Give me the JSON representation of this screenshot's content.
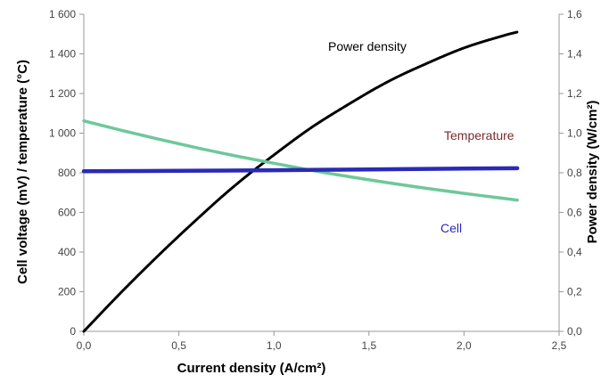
{
  "chart_data": {
    "type": "line",
    "xlabel": "Current density (A/cm²)",
    "ylabel_left": "Cell voltage (mV) / temperature  (°C)",
    "ylabel_right": "Power density (W/cm²)",
    "xlim": [
      0,
      2.5
    ],
    "ylim_left": [
      0,
      1600
    ],
    "ylim_right": [
      0,
      1.6
    ],
    "grid": false,
    "x_ticks": [
      0,
      0.5,
      1.0,
      1.5,
      2.0,
      2.5
    ],
    "x_tick_labels": [
      "0,0",
      "0,5",
      "1,0",
      "1,5",
      "2,0",
      "2,5"
    ],
    "y_left_ticks": [
      0,
      200,
      400,
      600,
      800,
      1000,
      1200,
      1400,
      1600
    ],
    "y_left_tick_labels": [
      "0",
      "200",
      "400",
      "600",
      "800",
      "1 000",
      "1 200",
      "1 400",
      "1 600"
    ],
    "y_right_ticks": [
      0,
      0.2,
      0.4,
      0.6,
      0.8,
      1.0,
      1.2,
      1.4,
      1.6
    ],
    "y_right_tick_labels": [
      "0,0",
      "0,2",
      "0,4",
      "0,6",
      "0,8",
      "1,0",
      "1,2",
      "1,4",
      "1,6"
    ],
    "series": [
      {
        "name": "Power density",
        "axis": "right",
        "color": "#000000",
        "x": [
          0,
          0.2,
          0.4,
          0.6,
          0.8,
          1.0,
          1.2,
          1.4,
          1.6,
          1.8,
          2.0,
          2.2,
          2.28
        ],
        "values": [
          0.0,
          0.2,
          0.39,
          0.57,
          0.74,
          0.89,
          1.03,
          1.15,
          1.26,
          1.35,
          1.43,
          1.49,
          1.51
        ]
      },
      {
        "name": "Temperature",
        "axis": "left",
        "color": "#6dc89a",
        "x": [
          0,
          0.2,
          0.4,
          0.6,
          0.8,
          1.0,
          1.2,
          1.4,
          1.6,
          1.8,
          2.0,
          2.2,
          2.28
        ],
        "values": [
          1062,
          1014,
          968,
          925,
          885,
          848,
          812,
          780,
          750,
          722,
          696,
          672,
          662
        ]
      },
      {
        "name": "Cell",
        "axis": "left",
        "color": "#2a2ab8",
        "x": [
          0,
          0.5,
          1.0,
          1.5,
          2.0,
          2.28
        ],
        "values": [
          808,
          810,
          813,
          817,
          821,
          823
        ]
      }
    ],
    "series_label_colors": {
      "Power density": "#000000",
      "Temperature": "#7a2a2a",
      "Cell": "#2a2ab8"
    }
  }
}
